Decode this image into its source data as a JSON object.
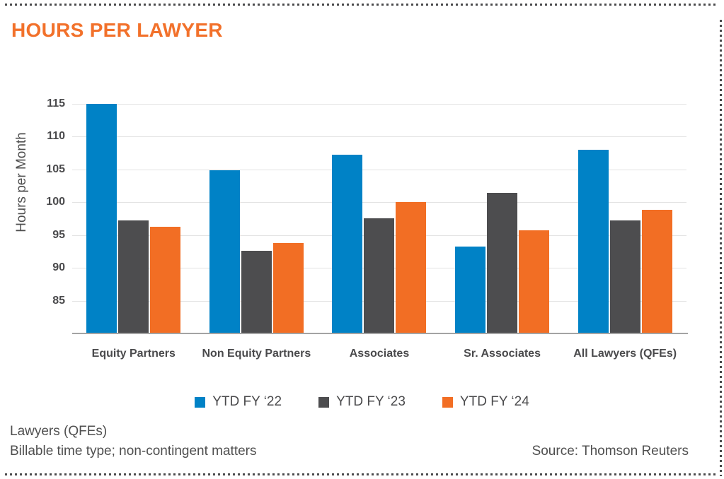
{
  "title": "HOURS PER LAWYER",
  "colors": {
    "title_accent": "#f2712b",
    "grid": "#e3e3e3",
    "axis_line": "#a3a3a3",
    "text": "#4a4a4c",
    "border_dots": "#4a4a4c"
  },
  "chart_data": {
    "type": "bar",
    "title": "HOURS PER LAWYER",
    "categories": [
      "Equity Partners",
      "Non Equity Partners",
      "Associates",
      "Sr. Associates",
      "All Lawyers (QFEs)"
    ],
    "series": [
      {
        "name": "YTD FY ‘22",
        "color": "#0082c6",
        "values": [
          115.0,
          104.9,
          107.2,
          93.3,
          108.0
        ]
      },
      {
        "name": "YTD FY ‘23",
        "color": "#4d4d4f",
        "values": [
          97.2,
          92.6,
          97.6,
          101.4,
          97.2
        ]
      },
      {
        "name": "YTD FY ‘24",
        "color": "#f26e24",
        "values": [
          96.3,
          93.8,
          100.0,
          95.7,
          98.8
        ]
      }
    ],
    "xlabel": "",
    "ylabel": "Hours per Month",
    "yticks": [
      85,
      90,
      95,
      100,
      105,
      110,
      115
    ],
    "ylim": [
      80,
      115
    ],
    "grid": true,
    "legend_position": "bottom-center"
  },
  "footer": {
    "line1": "Lawyers (QFEs)",
    "line2": "Billable time type; non-contingent matters",
    "source": "Source: Thomson Reuters"
  }
}
